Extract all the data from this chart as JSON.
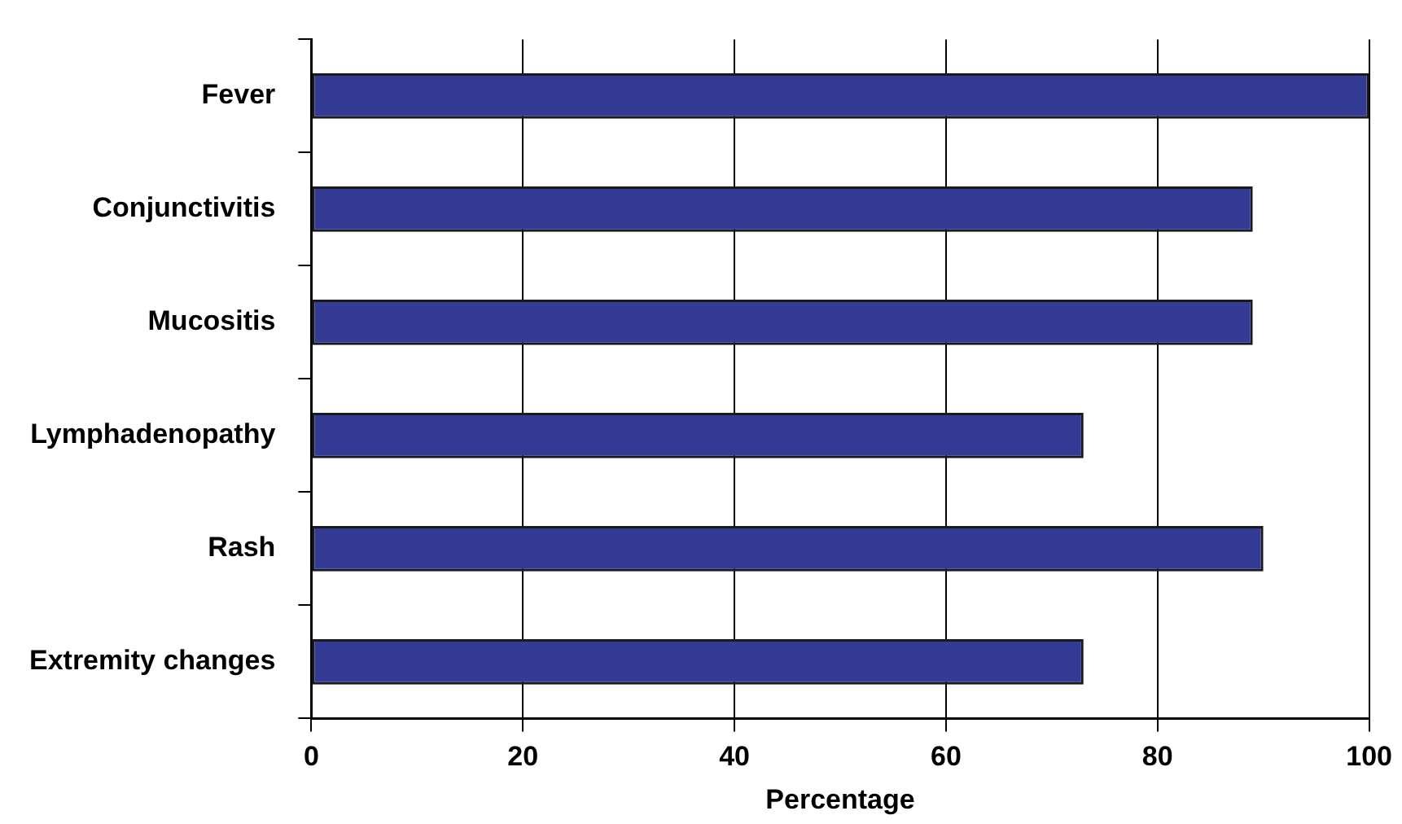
{
  "chart_data": {
    "type": "bar",
    "orientation": "horizontal",
    "xlabel": "Percentage",
    "categories": [
      "Fever",
      "Conjunctivitis",
      "Mucositis",
      "Lymphadenopathy",
      "Rash",
      "Extremity changes"
    ],
    "values": [
      100,
      89,
      89,
      73,
      90,
      73
    ],
    "color": "#333b94",
    "xlim": [
      0,
      100
    ],
    "xticks": [
      0,
      20,
      40,
      60,
      80,
      100
    ],
    "grid": "x",
    "legend": false
  }
}
